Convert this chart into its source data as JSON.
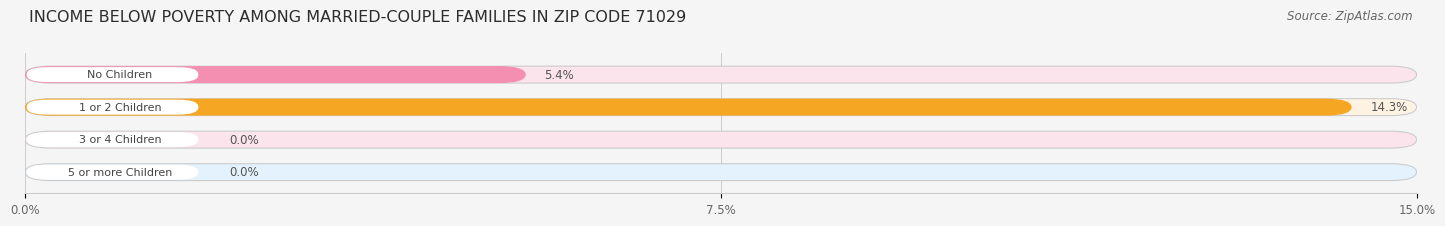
{
  "title": "INCOME BELOW POVERTY AMONG MARRIED-COUPLE FAMILIES IN ZIP CODE 71029",
  "source": "Source: ZipAtlas.com",
  "categories": [
    "No Children",
    "1 or 2 Children",
    "3 or 4 Children",
    "5 or more Children"
  ],
  "values": [
    5.4,
    14.3,
    0.0,
    0.0
  ],
  "bar_colors": [
    "#f48fb1",
    "#f5a623",
    "#f48fb1",
    "#90caf9"
  ],
  "bar_bg_colors": [
    "#fce4ec",
    "#fef3e2",
    "#fce4ec",
    "#e3f2fd"
  ],
  "xlim": [
    0,
    15.0
  ],
  "xticks": [
    0.0,
    7.5,
    15.0
  ],
  "xtick_labels": [
    "0.0%",
    "7.5%",
    "15.0%"
  ],
  "background_color": "#f5f5f5",
  "bar_background_color": "#e0e0e0",
  "title_fontsize": 11.5,
  "source_fontsize": 8.5,
  "bar_height": 0.52,
  "value_labels": [
    "5.4%",
    "14.3%",
    "0.0%",
    "0.0%"
  ],
  "label_pill_color": "#ffffff",
  "label_text_color": "#444444",
  "value_text_color": "#555555"
}
